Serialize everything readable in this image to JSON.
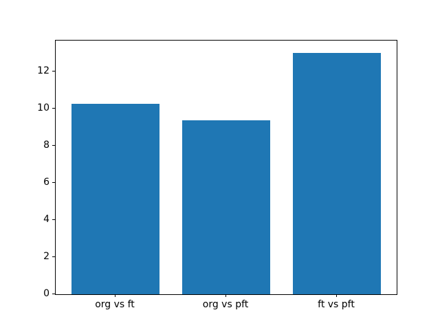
{
  "figure": {
    "background": "#ffffff",
    "spine_color": "#000000",
    "tick_color": "#000000"
  },
  "chart_data": {
    "type": "bar",
    "title": "",
    "xlabel": "",
    "ylabel": "",
    "categories": [
      "org vs ft",
      "org vs pft",
      "ft vs pft"
    ],
    "values": [
      10.25,
      9.35,
      13.0
    ],
    "bar_color": "#1f77b4",
    "bar_width": 0.8,
    "xlim": [
      -0.54,
      2.54
    ],
    "ylim": [
      0,
      13.65
    ],
    "yticks": [
      0,
      2,
      4,
      6,
      8,
      10,
      12
    ],
    "grid": false,
    "legend": null
  }
}
